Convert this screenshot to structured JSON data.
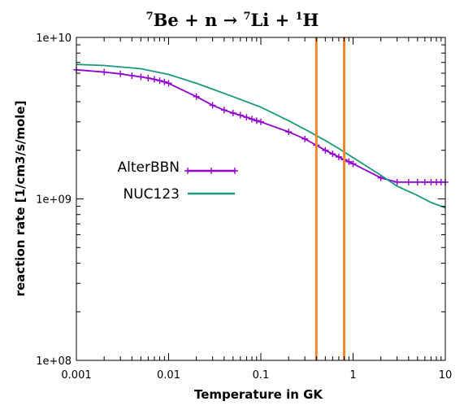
{
  "chart_data": {
    "type": "line",
    "title": {
      "isotope1_mass": "7",
      "isotope1_sym": "Be",
      "mid": " + n → ",
      "isotope2_mass": "7",
      "isotope2_sym": "Li",
      "plus": " + ",
      "isotope3_mass": "1",
      "isotope3_sym": "H"
    },
    "xlabel": "Temperature in GK",
    "ylabel": "reaction rate [1/cm3/s/mole]",
    "x_scale": "log",
    "y_scale": "log",
    "xlim": [
      0.001,
      10
    ],
    "ylim": [
      100000000,
      10000000000
    ],
    "x_ticks": [
      0.001,
      0.01,
      0.1,
      1,
      10
    ],
    "x_tick_labels": [
      "0.001",
      "0.01",
      "0.1",
      "1",
      "10"
    ],
    "y_ticks": [
      100000000,
      1000000000,
      10000000000
    ],
    "y_tick_labels": [
      "1e+08",
      "1e+09",
      "1e+10"
    ],
    "grid": false,
    "legend_position": "left",
    "vertical_lines": {
      "color": "#f0872a",
      "x": [
        0.4,
        0.8
      ]
    },
    "series": [
      {
        "name": "AlterBBN",
        "color": "#9400d3",
        "marker": "plus",
        "x": [
          0.001,
          0.002,
          0.003,
          0.004,
          0.005,
          0.006,
          0.007,
          0.008,
          0.009,
          0.01,
          0.02,
          0.03,
          0.04,
          0.05,
          0.06,
          0.07,
          0.08,
          0.09,
          0.1,
          0.2,
          0.3,
          0.4,
          0.5,
          0.6,
          0.7,
          0.8,
          0.9,
          1,
          2,
          3,
          4,
          5,
          6,
          7,
          8,
          9,
          10
        ],
        "y": [
          6300000000,
          6100000000,
          5950000000,
          5800000000,
          5700000000,
          5600000000,
          5500000000,
          5400000000,
          5300000000,
          5200000000,
          4300000000,
          3800000000,
          3550000000,
          3400000000,
          3300000000,
          3200000000,
          3120000000,
          3050000000,
          3000000000,
          2600000000,
          2350000000,
          2150000000,
          2000000000,
          1900000000,
          1820000000,
          1750000000,
          1700000000,
          1650000000,
          1350000000,
          1270000000,
          1270000000,
          1270000000,
          1270000000,
          1270000000,
          1270000000,
          1270000000,
          1270000000
        ]
      },
      {
        "name": "NUC123",
        "color": "#1a9a7a",
        "marker": "none",
        "x": [
          0.001,
          0.002,
          0.005,
          0.01,
          0.02,
          0.05,
          0.1,
          0.2,
          0.3,
          0.5,
          0.7,
          1,
          2,
          3,
          5,
          7,
          10
        ],
        "y": [
          6800000000,
          6700000000,
          6400000000,
          5900000000,
          5200000000,
          4300000000,
          3700000000,
          3050000000,
          2700000000,
          2300000000,
          2050000000,
          1800000000,
          1400000000,
          1200000000,
          1050000000,
          950000000,
          880000000
        ]
      }
    ]
  }
}
